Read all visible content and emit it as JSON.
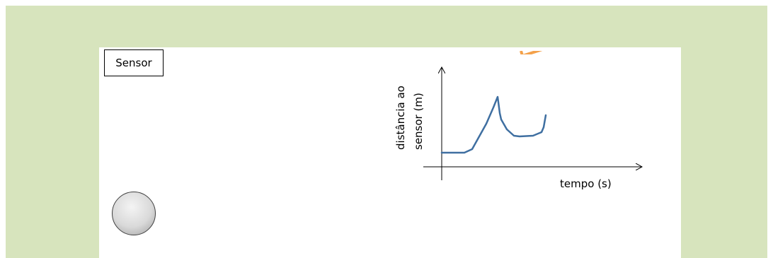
{
  "sensor_label": "Sensor",
  "graph": {
    "ylabel_line1": "distância ao",
    "ylabel_line2": "sensor (m)",
    "xlabel": "tempo (s)"
  },
  "colors": {
    "background_frame": "#d7e4bd",
    "curve": "#3f6fa1",
    "accent_orange": "#f4a14a"
  }
}
